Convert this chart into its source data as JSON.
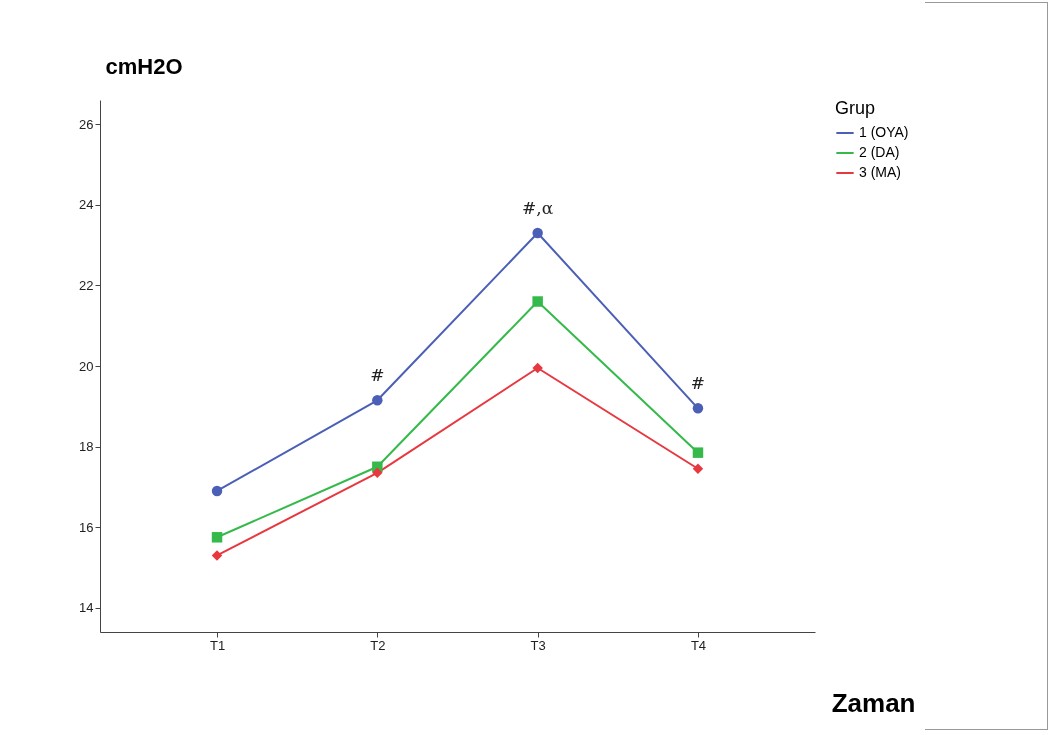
{
  "chart_data": {
    "type": "line",
    "xlabel": "Zaman",
    "ylabel": "cmH2O",
    "legend_title": "Grup",
    "legend": "top right",
    "grid": false,
    "categories": [
      "T1",
      "T2",
      "T3",
      "T4"
    ],
    "ylim": [
      13.4,
      26.6
    ],
    "yticks": [
      14,
      16,
      18,
      20,
      22,
      24,
      26
    ],
    "series": [
      {
        "name": "1 (OYA)",
        "color": "#4a5fb5",
        "marker": "circle",
        "values": [
          16.9,
          19.15,
          23.3,
          18.95
        ]
      },
      {
        "name": "2 (DA)",
        "color": "#34b94a",
        "marker": "square",
        "values": [
          15.75,
          17.5,
          21.6,
          17.85
        ]
      },
      {
        "name": "3 (MA)",
        "color": "#e8383f",
        "marker": "diamond",
        "values": [
          15.3,
          17.35,
          19.95,
          17.45
        ]
      }
    ],
    "annotations": [
      {
        "text": "#",
        "x": "T2",
        "y": 19.15
      },
      {
        "text": "#,α",
        "x": "T3",
        "y": 23.3
      },
      {
        "text": "#",
        "x": "T4",
        "y": 18.95
      }
    ]
  }
}
